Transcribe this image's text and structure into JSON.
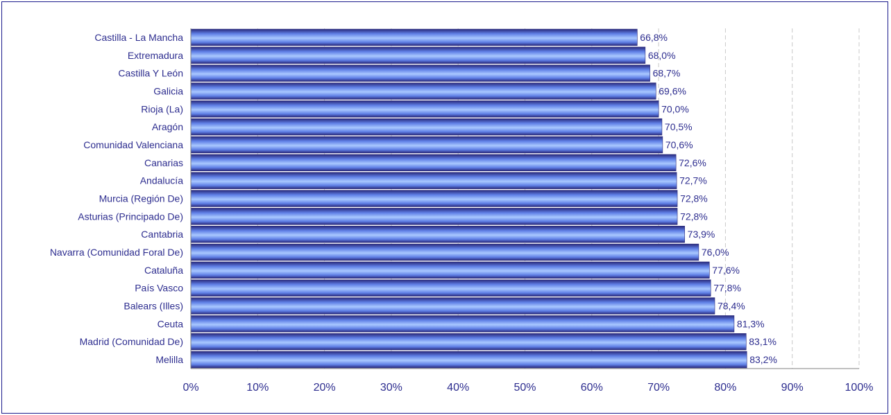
{
  "chart_data": {
    "type": "bar",
    "orientation": "horizontal",
    "title": "",
    "xlabel": "",
    "ylabel": "",
    "categories": [
      "Castilla - La Mancha",
      "Extremadura",
      "Castilla Y León",
      "Galicia",
      "Rioja (La)",
      "Aragón",
      "Comunidad Valenciana",
      "Canarias",
      "Andalucía",
      "Murcia (Región De)",
      "Asturias (Principado De)",
      "Cantabria",
      "Navarra (Comunidad Foral De)",
      "Cataluña",
      "País Vasco",
      "Balears (Illes)",
      "Ceuta",
      "Madrid (Comunidad De)",
      "Melilla"
    ],
    "values": [
      66.8,
      68.0,
      68.7,
      69.6,
      70.0,
      70.5,
      70.6,
      72.6,
      72.7,
      72.8,
      72.8,
      73.9,
      76.0,
      77.6,
      77.8,
      78.4,
      81.3,
      83.1,
      83.2
    ],
    "value_labels": [
      "66,8%",
      "68,0%",
      "68,7%",
      "69,6%",
      "70,0%",
      "70,5%",
      "70,6%",
      "72,6%",
      "72,7%",
      "72,8%",
      "72,8%",
      "73,9%",
      "76,0%",
      "77,6%",
      "77,8%",
      "78,4%",
      "81,3%",
      "83,1%",
      "83,2%"
    ],
    "xlim": [
      0,
      100
    ],
    "xticks": [
      "0%",
      "10%",
      "20%",
      "30%",
      "40%",
      "50%",
      "60%",
      "70%",
      "80%",
      "90%",
      "100%"
    ],
    "grid": "vertical dashed",
    "legend": "none",
    "colors": {
      "bar_dark": "#28287a",
      "bar_mid": "#5f7fe6",
      "bar_light": "#a9c8ff",
      "text": "#2d2d8f",
      "grid": "#c8c8c8",
      "axis": "#808080",
      "border": "#1b1b8c"
    }
  }
}
